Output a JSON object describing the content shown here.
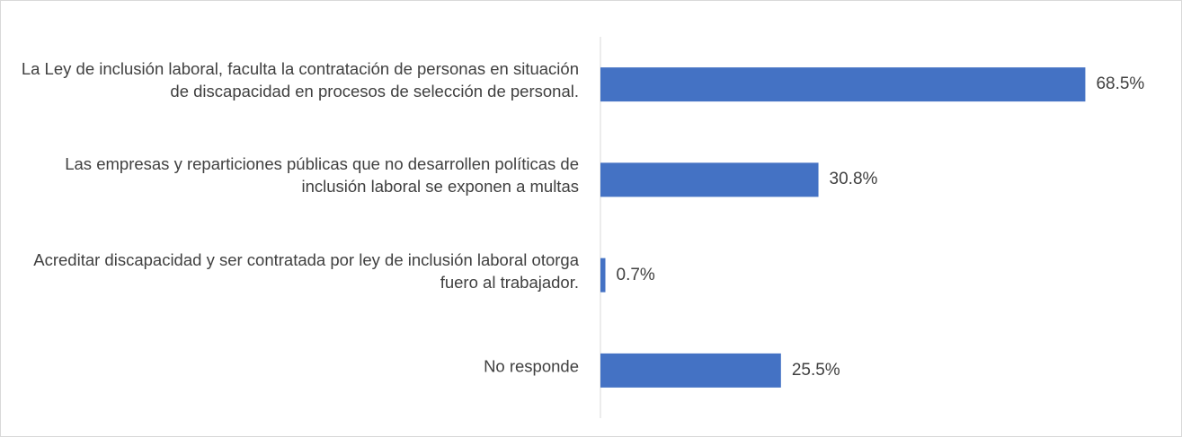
{
  "chart_data": {
    "type": "bar",
    "orientation": "horizontal",
    "categories": [
      "La Ley de inclusión laboral, faculta la contratación de personas en situación de discapacidad en procesos de selección de personal.",
      "Las empresas y reparticiones públicas que no desarrollen políticas de inclusión laboral se exponen a multas",
      "Acreditar discapacidad y ser contratada por ley de inclusión laboral otorga fuero al trabajador.",
      "No responde"
    ],
    "values": [
      68.5,
      30.8,
      0.7,
      25.5
    ],
    "value_labels": [
      "68.5%",
      "30.8%",
      "0.7%",
      "25.5%"
    ],
    "color": "#4472c4",
    "xlim": [
      0,
      80
    ]
  }
}
